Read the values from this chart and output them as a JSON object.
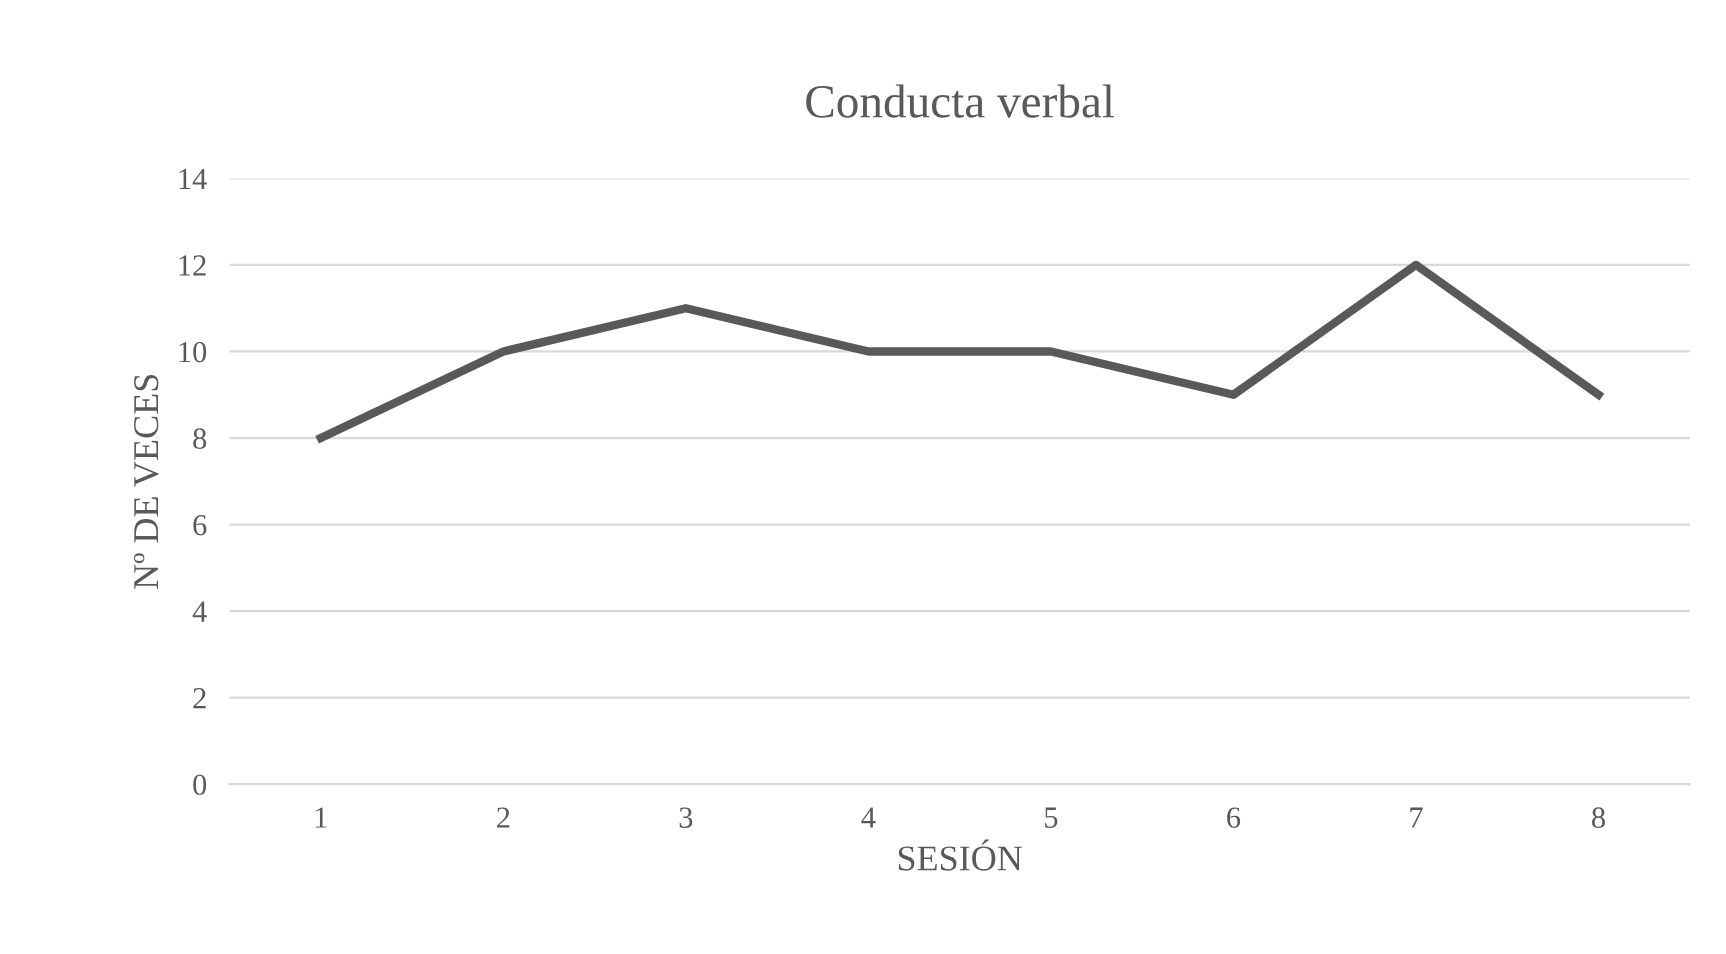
{
  "chart_data": {
    "type": "line",
    "title": "Conducta verbal",
    "xlabel": "SESIÓN",
    "ylabel": "Nº DE VECES",
    "categories": [
      "1",
      "2",
      "3",
      "4",
      "5",
      "6",
      "7",
      "8"
    ],
    "series": [
      {
        "color": "#595959",
        "values": [
          8,
          10,
          11,
          10,
          10,
          9,
          12,
          9
        ]
      }
    ],
    "ylim": [
      0,
      14
    ],
    "yticks": [
      0,
      2,
      4,
      6,
      8,
      10,
      12,
      14
    ],
    "grid": "y",
    "legend": false,
    "marker": "none",
    "line_style": "solid"
  }
}
